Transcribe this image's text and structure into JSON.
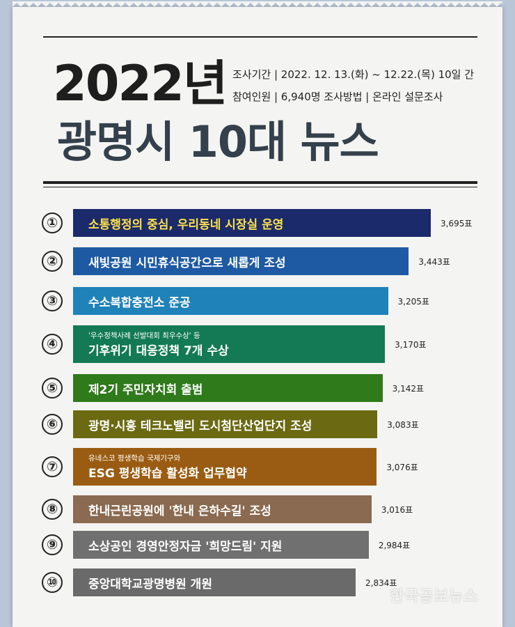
{
  "header": {
    "year_title": "2022년",
    "main_title": "광명시 10대 뉴스",
    "info_line1": "조사기간 | 2022. 12. 13.(화) ~ 12.22.(목) 10일 간",
    "info_line2": "참여인원 | 6,940명   조사방법 | 온라인 설문조사"
  },
  "watermark": "한국공보뉴스",
  "chart_data": {
    "type": "bar",
    "orientation": "horizontal",
    "unit": "표",
    "categories": [
      {
        "rank": "①",
        "label": "소통행정의 중심, 우리동네 시장실 운영",
        "sub": "",
        "value": 3695,
        "value_label": "3,695표",
        "color": "#1b2a6b",
        "text_color": "#ffe24a"
      },
      {
        "rank": "②",
        "label": "새빛공원 시민휴식공간으로 새롭게 조성",
        "sub": "",
        "value": 3443,
        "value_label": "3,443표",
        "color": "#1e5aa3",
        "text_color": "#ffffff"
      },
      {
        "rank": "③",
        "label": "수소복합충전소 준공",
        "sub": "",
        "value": 3205,
        "value_label": "3,205표",
        "color": "#1f82b8",
        "text_color": "#ffffff"
      },
      {
        "rank": "④",
        "label": "기후위기 대응정책 7개 수상",
        "sub": "'우수정책사례 선발대회 최우수상' 등",
        "value": 3170,
        "value_label": "3,170표",
        "color": "#137a55",
        "text_color": "#ffffff"
      },
      {
        "rank": "⑤",
        "label": "제2기 주민자치회 출범",
        "sub": "",
        "value": 3142,
        "value_label": "3,142표",
        "color": "#2f7a1a",
        "text_color": "#ffffff"
      },
      {
        "rank": "⑥",
        "label": "광명·시흥 테크노밸리 도시첨단산업단지 조성",
        "sub": "",
        "value": 3083,
        "value_label": "3,083표",
        "color": "#6b6a12",
        "text_color": "#ffffff"
      },
      {
        "rank": "⑦",
        "label": "ESG 평생학습 활성화 업무협약",
        "sub": "유네스코 평생학습 국제기구와",
        "value": 3076,
        "value_label": "3,076표",
        "color": "#9a5c12",
        "text_color": "#ffffff"
      },
      {
        "rank": "⑧",
        "label": "한내근린공원에 '한내 은하수길' 조성",
        "sub": "",
        "value": 3016,
        "value_label": "3,016표",
        "color": "#8a6a50",
        "text_color": "#ffffff"
      },
      {
        "rank": "⑨",
        "label": "소상공인 경영안정자금 '희망드림' 지원",
        "sub": "",
        "value": 2984,
        "value_label": "2,984표",
        "color": "#707070",
        "text_color": "#ffffff"
      },
      {
        "rank": "⑩",
        "label": "중앙대학교광명병원 개원",
        "sub": "",
        "value": 2834,
        "value_label": "2,834표",
        "color": "#6a6a6a",
        "text_color": "#ffffff"
      }
    ]
  }
}
